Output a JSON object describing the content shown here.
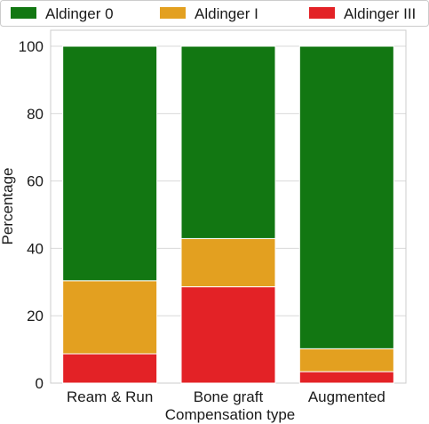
{
  "chart_data": {
    "type": "bar",
    "stacked": true,
    "categories": [
      "Ream & Run",
      "Bone graft",
      "Augmented"
    ],
    "series": [
      {
        "name": "Aldinger III",
        "color": "#e32226",
        "values": [
          8.7,
          28.6,
          3.4
        ]
      },
      {
        "name": "Aldinger I",
        "color": "#e3a020",
        "values": [
          21.7,
          14.3,
          6.8
        ]
      },
      {
        "name": "Aldinger 0",
        "color": "#127712",
        "values": [
          69.6,
          57.1,
          89.8
        ]
      }
    ],
    "legend_order": [
      "Aldinger 0",
      "Aldinger I",
      "Aldinger III"
    ],
    "legend_position": "top",
    "xlabel": "Compensation type",
    "ylabel": "Percentage",
    "yticks": [
      0,
      20,
      40,
      60,
      80,
      100
    ],
    "ylim": [
      0,
      100
    ],
    "grid": "horizontal"
  }
}
